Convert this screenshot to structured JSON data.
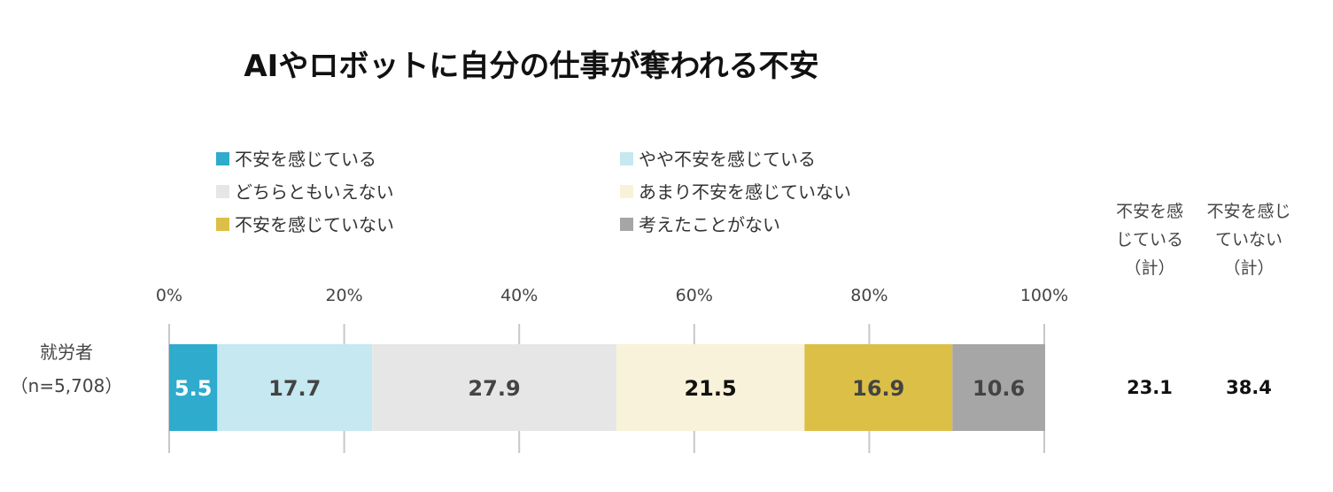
{
  "chart_data": {
    "type": "bar",
    "stacked": true,
    "orientation": "horizontal",
    "title": "AIやロボットに自分の仕事が奪われる不安",
    "xlim": [
      0,
      100
    ],
    "xticks": [
      "0%",
      "20%",
      "40%",
      "60%",
      "80%",
      "100%"
    ],
    "tick_values": [
      0,
      20,
      40,
      60,
      80,
      100
    ],
    "categories": [
      "就労者\n（n=5,708）"
    ],
    "category_lines": [
      "就労者",
      "（n=5,708）"
    ],
    "legend_position": "top",
    "series": [
      {
        "name": "不安を感じている",
        "values": [
          5.5
        ],
        "color": "#2eabcd",
        "label_color": "#ffffff"
      },
      {
        "name": "やや不安を感じている",
        "values": [
          17.7
        ],
        "color": "#c5e8f1",
        "label_color": "#444444"
      },
      {
        "name": "どちらともいえない",
        "values": [
          27.9
        ],
        "color": "#e6e6e6",
        "label_color": "#444444"
      },
      {
        "name": "あまり不安を感じていない",
        "values": [
          21.5
        ],
        "color": "#f7f2d9",
        "label_color": "#111111"
      },
      {
        "name": "不安を感じていない",
        "values": [
          16.9
        ],
        "color": "#dcbf47",
        "label_color": "#444444"
      },
      {
        "name": "考えたことがない",
        "values": [
          10.6
        ],
        "color": "#a6a6a6",
        "label_color": "#444444"
      }
    ],
    "totals_columns": [
      {
        "header": [
          "不安を感",
          "じている",
          "（計）"
        ],
        "values": [
          "23.1"
        ]
      },
      {
        "header": [
          "不安を感じ",
          "ていない",
          "（計）"
        ],
        "values": [
          "38.4"
        ]
      }
    ],
    "grid": true
  }
}
